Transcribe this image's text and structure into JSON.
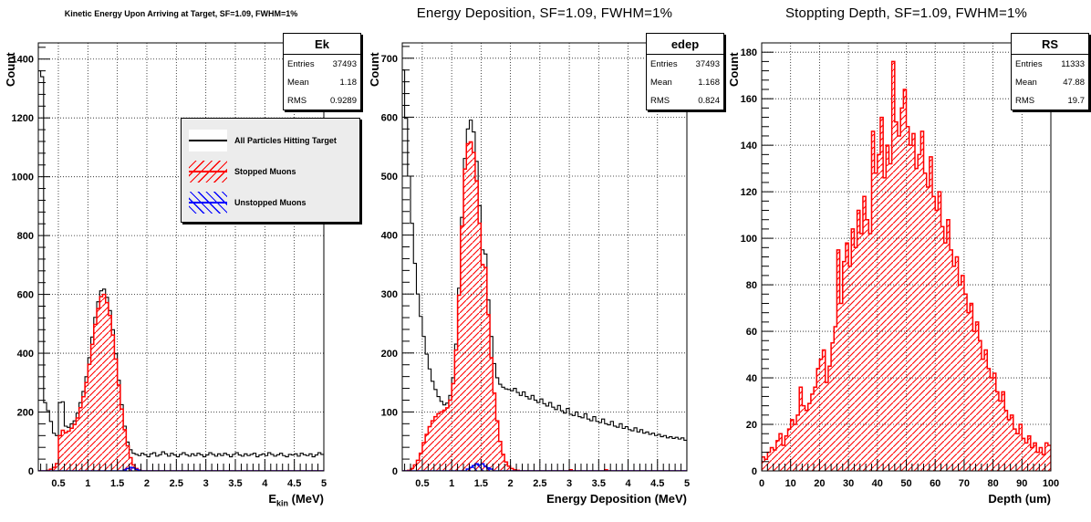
{
  "page": {
    "background": "#ffffff"
  },
  "colors": {
    "all_particles": "#000000",
    "stopped_muons": "#ff0000",
    "unstopped_muons": "#0000ff",
    "legend_bg": "#ececec",
    "grid": "#000000"
  },
  "chart_data": [
    {
      "type": "bar",
      "subtype": "step-histogram",
      "title": "Kinetic Energy Upon Arriving at Target, SF=1.09, FWHM=1%",
      "stats": {
        "box_title": "Ek",
        "rows": [
          [
            "Entries",
            "37493"
          ],
          [
            "Mean",
            "1.18"
          ],
          [
            "RMS",
            "0.9289"
          ]
        ]
      },
      "ylabel": "Count",
      "xlabel_text": "E_kin (MeV)",
      "xlabel": {
        "pre": "E",
        "sub": "kin",
        "post": " (MeV)"
      },
      "xlim": [
        0.16,
        5
      ],
      "ylim": [
        0,
        1455
      ],
      "grid": true,
      "xticks": {
        "first": 0.5,
        "step": 0.5,
        "minor_step": 0.1,
        "labels": [
          "0.5",
          "1",
          "1.5",
          "2",
          "2.5",
          "3",
          "3.5",
          "4",
          "4.5",
          "5"
        ]
      },
      "yticks": {
        "first": 0,
        "step": 200,
        "minor_step": 40,
        "labels": [
          "0",
          "200",
          "400",
          "600",
          "800",
          "1000",
          "1200",
          "1400"
        ]
      },
      "bins": {
        "start": 0.15,
        "width": 0.05,
        "count": 97
      },
      "legend": {
        "visible": true,
        "position": "upper-left-inside",
        "items": [
          "All Particles Hitting Target",
          "Stopped Muons",
          "Unstopped Muons"
        ]
      },
      "series": [
        {
          "name": "All Particles Hitting Target",
          "color": "#000000",
          "fill": "none",
          "values": [
            1360,
            1340,
            232,
            205,
            168,
            128,
            120,
            232,
            235,
            152,
            148,
            160,
            170,
            196,
            232,
            270,
            320,
            385,
            455,
            522,
            575,
            612,
            618,
            590,
            545,
            480,
            398,
            308,
            225,
            152,
            98,
            72,
            60,
            56,
            52,
            60,
            55,
            48,
            58,
            62,
            50,
            55,
            65,
            58,
            50,
            60,
            54,
            48,
            56,
            62,
            55,
            50,
            58,
            52,
            60,
            55,
            48,
            54,
            62,
            56,
            50,
            58,
            52,
            60,
            55,
            48,
            56,
            62,
            54,
            50,
            58,
            52,
            56,
            60,
            48,
            54,
            58,
            52,
            62,
            56,
            50,
            55,
            60,
            52,
            48,
            56,
            54,
            58,
            50,
            60,
            55,
            52,
            58,
            48,
            54,
            62,
            56
          ]
        },
        {
          "name": "Stopped Muons",
          "color": "#ff0000",
          "fill": "hatch-fwd",
          "values": [
            0,
            0,
            0,
            2,
            6,
            12,
            25,
            120,
            138,
            130,
            135,
            145,
            158,
            180,
            215,
            252,
            300,
            362,
            430,
            498,
            552,
            592,
            600,
            572,
            528,
            462,
            380,
            292,
            210,
            140,
            85,
            45,
            20,
            8,
            3,
            0,
            0,
            0,
            0,
            0,
            0,
            0,
            0,
            0,
            0,
            0,
            0,
            0,
            0,
            0,
            0,
            0,
            0,
            0,
            0,
            0,
            0,
            0,
            0,
            0,
            0,
            0,
            0,
            0,
            0,
            0,
            0,
            0,
            0,
            0,
            0,
            0,
            0,
            0,
            0,
            0,
            0,
            0,
            0,
            0,
            0,
            0,
            0,
            0,
            0,
            0,
            0,
            0,
            0,
            0,
            0,
            0,
            0,
            0,
            0,
            0,
            0
          ]
        },
        {
          "name": "Unstopped Muons",
          "color": "#0000ff",
          "fill": "hatch-back",
          "values": [
            0,
            0,
            0,
            0,
            0,
            0,
            0,
            0,
            0,
            0,
            0,
            0,
            0,
            0,
            0,
            0,
            0,
            0,
            0,
            0,
            0,
            0,
            0,
            0,
            0,
            0,
            0,
            0,
            0,
            3,
            8,
            12,
            10,
            5,
            2,
            0,
            0,
            0,
            0,
            0,
            0,
            0,
            0,
            0,
            0,
            0,
            0,
            0,
            0,
            0,
            0,
            0,
            0,
            0,
            0,
            0,
            0,
            0,
            0,
            0,
            0,
            0,
            0,
            0,
            0,
            0,
            0,
            0,
            0,
            0,
            0,
            0,
            0,
            0,
            0,
            0,
            0,
            0,
            0,
            0,
            0,
            0,
            0,
            0,
            0,
            0,
            0,
            0,
            0,
            0,
            0,
            0,
            0,
            0,
            0,
            0,
            0
          ]
        }
      ]
    },
    {
      "type": "bar",
      "subtype": "step-histogram",
      "title": "Energy Deposition, SF=1.09, FWHM=1%",
      "stats": {
        "box_title": "edep",
        "rows": [
          [
            "Entries",
            "37493"
          ],
          [
            "Mean",
            "1.168"
          ],
          [
            "RMS",
            "0.824"
          ]
        ]
      },
      "ylabel": "Count",
      "xlabel_text": "Energy Deposition (MeV)",
      "xlabel": {
        "pre": "Energy Deposition (MeV)",
        "sub": "",
        "post": ""
      },
      "xlim": [
        0.16,
        5
      ],
      "ylim": [
        0,
        726
      ],
      "grid": true,
      "xticks": {
        "first": 0.5,
        "step": 0.5,
        "minor_step": 0.1,
        "labels": [
          "0.5",
          "1",
          "1.5",
          "2",
          "2.5",
          "3",
          "3.5",
          "4",
          "4.5",
          "5"
        ]
      },
      "yticks": {
        "first": 0,
        "step": 100,
        "minor_step": 20,
        "labels": [
          "0",
          "100",
          "200",
          "300",
          "400",
          "500",
          "600",
          "700"
        ]
      },
      "bins": {
        "start": 0.15,
        "width": 0.05,
        "count": 97
      },
      "legend": {
        "visible": false,
        "position": "",
        "items": []
      },
      "series": [
        {
          "name": "All Particles Hitting Target",
          "color": "#000000",
          "fill": "none",
          "values": [
            680,
            598,
            500,
            420,
            352,
            300,
            262,
            228,
            198,
            173,
            152,
            138,
            126,
            118,
            112,
            115,
            128,
            158,
            215,
            310,
            430,
            530,
            580,
            595,
            575,
            525,
            450,
            375,
            368,
            290,
            228,
            182,
            158,
            147,
            142,
            139,
            138,
            136,
            140,
            133,
            128,
            134,
            126,
            122,
            128,
            120,
            116,
            122,
            114,
            110,
            116,
            108,
            104,
            111,
            102,
            98,
            106,
            96,
            94,
            100,
            92,
            90,
            97,
            88,
            85,
            92,
            84,
            82,
            88,
            80,
            78,
            84,
            76,
            74,
            80,
            72,
            75,
            70,
            68,
            73,
            66,
            70,
            64,
            66,
            62,
            64,
            60,
            62,
            58,
            60,
            56,
            58,
            55,
            57,
            54,
            56,
            52
          ]
        },
        {
          "name": "Stopped Muons",
          "color": "#ff0000",
          "fill": "hatch-fwd",
          "values": [
            0,
            0,
            1,
            4,
            10,
            18,
            30,
            48,
            62,
            75,
            85,
            92,
            97,
            100,
            103,
            107,
            120,
            148,
            205,
            298,
            415,
            512,
            555,
            558,
            540,
            492,
            420,
            350,
            345,
            265,
            192,
            132,
            85,
            50,
            28,
            15,
            8,
            4,
            2,
            1,
            0,
            0,
            0,
            0,
            0,
            0,
            0,
            0,
            0,
            0,
            0,
            0,
            0,
            0,
            0,
            0,
            0,
            2,
            0,
            0,
            0,
            0,
            0,
            0,
            0,
            0,
            0,
            0,
            0,
            2,
            0,
            0,
            0,
            0,
            0,
            0,
            0,
            0,
            0,
            0,
            0,
            0,
            0,
            0,
            0,
            0,
            0,
            0,
            0,
            0,
            0,
            0,
            0,
            0,
            0,
            0,
            0
          ]
        },
        {
          "name": "Unstopped Muons",
          "color": "#0000ff",
          "fill": "hatch-back",
          "values": [
            0,
            0,
            0,
            0,
            0,
            0,
            0,
            0,
            0,
            0,
            0,
            0,
            0,
            0,
            0,
            0,
            0,
            0,
            0,
            0,
            0,
            0,
            3,
            6,
            9,
            12,
            10,
            12,
            8,
            5,
            3,
            0,
            0,
            0,
            0,
            0,
            0,
            0,
            0,
            0,
            0,
            0,
            0,
            0,
            0,
            0,
            0,
            0,
            0,
            0,
            0,
            0,
            0,
            0,
            0,
            0,
            0,
            0,
            0,
            0,
            0,
            0,
            0,
            0,
            0,
            0,
            0,
            0,
            0,
            0,
            0,
            0,
            0,
            0,
            0,
            0,
            0,
            0,
            0,
            0,
            0,
            0,
            0,
            0,
            0,
            0,
            0,
            0,
            0,
            0,
            0,
            0,
            0,
            0,
            0,
            0,
            0
          ]
        }
      ]
    },
    {
      "type": "bar",
      "subtype": "step-histogram",
      "title": "Stoppting Depth, SF=1.09, FWHM=1%",
      "stats": {
        "box_title": "RS",
        "rows": [
          [
            "Entries",
            "11333"
          ],
          [
            "Mean",
            "47.88"
          ],
          [
            "RMS",
            "19.7"
          ]
        ]
      },
      "ylabel": "Count",
      "xlabel_text": "Depth (um)",
      "xlabel": {
        "pre": "Depth (um)",
        "sub": "",
        "post": ""
      },
      "xlim": [
        0,
        100
      ],
      "ylim": [
        0,
        184
      ],
      "grid": true,
      "xticks": {
        "first": 0,
        "step": 10,
        "minor_step": 2,
        "labels": [
          "0",
          "10",
          "20",
          "30",
          "40",
          "50",
          "60",
          "70",
          "80",
          "90",
          "100"
        ]
      },
      "yticks": {
        "first": 0,
        "step": 20,
        "minor_step": 4,
        "labels": [
          "0",
          "20",
          "40",
          "60",
          "80",
          "100",
          "120",
          "140",
          "160",
          "180"
        ]
      },
      "bins": {
        "start": 0,
        "width": 1,
        "count": 100
      },
      "legend": {
        "visible": false,
        "position": "",
        "items": []
      },
      "series": [
        {
          "name": "Stopped Muons",
          "color": "#ff0000",
          "fill": "hatch-fwd",
          "values": [
            6,
            5,
            8,
            10,
            9,
            13,
            16,
            11,
            15,
            18,
            22,
            20,
            24,
            36,
            28,
            26,
            29,
            33,
            36,
            44,
            48,
            52,
            38,
            45,
            55,
            62,
            95,
            72,
            90,
            98,
            88,
            104,
            96,
            112,
            102,
            118,
            108,
            102,
            146,
            128,
            136,
            152,
            126,
            140,
            132,
            176,
            150,
            144,
            156,
            164,
            148,
            140,
            145,
            130,
            136,
            146,
            128,
            122,
            135,
            118,
            112,
            120,
            105,
            98,
            108,
            95,
            88,
            92,
            80,
            84,
            76,
            68,
            72,
            60,
            64,
            56,
            48,
            52,
            44,
            40,
            42,
            34,
            30,
            34,
            26,
            22,
            24,
            18,
            16,
            20,
            14,
            12,
            15,
            10,
            12,
            8,
            10,
            7,
            12,
            11
          ]
        }
      ]
    }
  ]
}
